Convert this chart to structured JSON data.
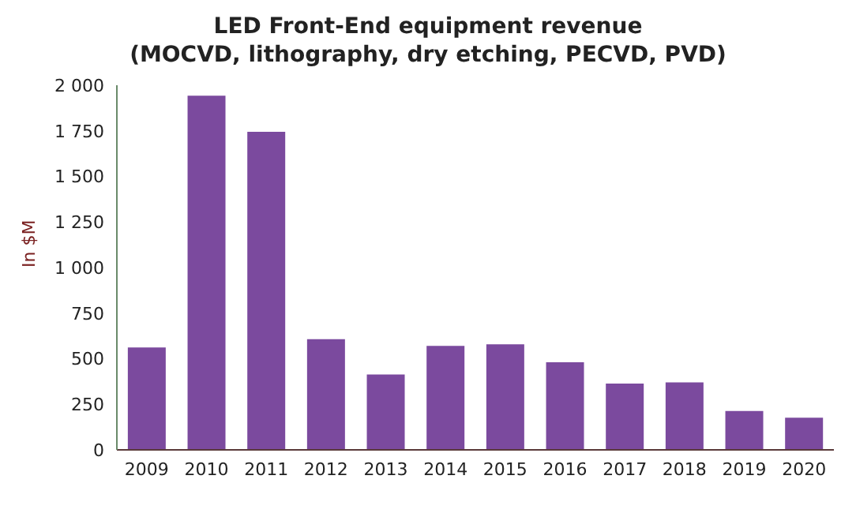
{
  "chart_data": {
    "type": "bar",
    "title": "LED Front-End equipment revenue",
    "subtitle": "(MOCVD, lithography, dry etching, PECVD, PVD)",
    "ylabel": "In $M",
    "categories": [
      "2009",
      "2010",
      "2011",
      "2012",
      "2013",
      "2014",
      "2015",
      "2016",
      "2017",
      "2018",
      "2019",
      "2020"
    ],
    "values": [
      566,
      1947,
      1749,
      611,
      418,
      575,
      583,
      485,
      368,
      374,
      218,
      181
    ],
    "color": "#7b4a9e",
    "ylim": [
      0,
      2000
    ],
    "yticks": [
      0,
      250,
      500,
      750,
      {
        "value": 1000,
        "label": "1 000"
      },
      {
        "value": 1250,
        "label": "1 250"
      },
      {
        "value": 1500,
        "label": "1 500"
      },
      {
        "value": 1750,
        "label": "1 750"
      },
      {
        "value": 2000,
        "label": "2 000"
      }
    ],
    "grid": false,
    "legend": false
  }
}
